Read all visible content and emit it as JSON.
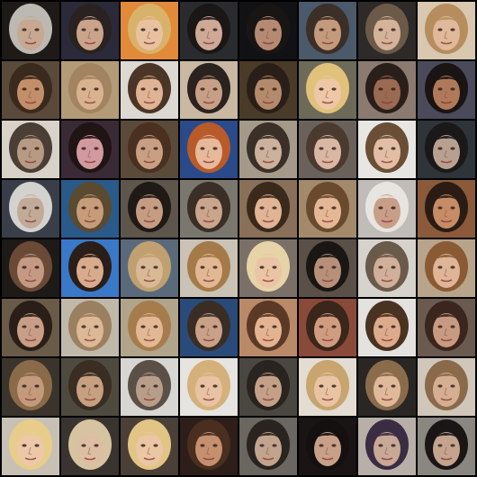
{
  "image_grid": {
    "rows": 8,
    "columns": 8,
    "cell_colors": [
      [
        {
          "bg": "#1d1a17",
          "hair": "#bcb9b2",
          "skin": "#c7a890"
        },
        {
          "bg": "#2a2a3a",
          "hair": "#2a2220",
          "skin": "#c9a48b"
        },
        {
          "bg": "#e08a3a",
          "hair": "#d8b26a",
          "skin": "#e8c2a0"
        },
        {
          "bg": "#2a2b2e",
          "hair": "#1a1716",
          "skin": "#cfa896"
        },
        {
          "bg": "#121214",
          "hair": "#1a1515",
          "skin": "#b68a72"
        },
        {
          "bg": "#4a5a6a",
          "hair": "#3b2f28",
          "skin": "#c49a7c"
        },
        {
          "bg": "#2d2a28",
          "hair": "#6b5a48",
          "skin": "#d4b39a"
        },
        {
          "bg": "#d9c7b0",
          "hair": "#b68e5e",
          "skin": "#e0b89a"
        }
      ],
      [
        {
          "bg": "#5a4a3a",
          "hair": "#3a2a1e",
          "skin": "#c38f6a"
        },
        {
          "bg": "#b49b78",
          "hair": "#a38460",
          "skin": "#d9b390"
        },
        {
          "bg": "#dcd8d2",
          "hair": "#4a3526",
          "skin": "#e0b395"
        },
        {
          "bg": "#c9b8a2",
          "hair": "#2a221e",
          "skin": "#c79f86"
        },
        {
          "bg": "#4a3a28",
          "hair": "#2a1f18",
          "skin": "#b48a6c"
        },
        {
          "bg": "#6e6a5a",
          "hair": "#e0c27a",
          "skin": "#edc7a6"
        },
        {
          "bg": "#8a7a70",
          "hair": "#2a1e1a",
          "skin": "#9a6a52"
        },
        {
          "bg": "#4a4a5a",
          "hair": "#1a1412",
          "skin": "#b07a5a"
        }
      ],
      [
        {
          "bg": "#d8d2c8",
          "hair": "#4a3e36",
          "skin": "#b69a84"
        },
        {
          "bg": "#3a2a36",
          "hair": "#201414",
          "skin": "#d29aa0"
        },
        {
          "bg": "#5a4a3a",
          "hair": "#4a3020",
          "skin": "#c89f82"
        },
        {
          "bg": "#2a4a8a",
          "hair": "#b85a2a",
          "skin": "#e7b89a"
        },
        {
          "bg": "#a59a8a",
          "hair": "#3a3028",
          "skin": "#ccb19c"
        },
        {
          "bg": "#6a625a",
          "hair": "#4a3a30",
          "skin": "#d9b7a2"
        },
        {
          "bg": "#e8e6e2",
          "hair": "#6a4e36",
          "skin": "#e2bfa4"
        },
        {
          "bg": "#2e3438",
          "hair": "#1a1818",
          "skin": "#b8a090"
        }
      ],
      [
        {
          "bg": "#3a3e48",
          "hair": "#d4d2ce",
          "skin": "#c2aa98"
        },
        {
          "bg": "#2a5a8a",
          "hair": "#5a4a30",
          "skin": "#c79c7a"
        },
        {
          "bg": "#5e564a",
          "hair": "#1f1a16",
          "skin": "#c69c82"
        },
        {
          "bg": "#7a786e",
          "hair": "#3a2e26",
          "skin": "#c9a58c"
        },
        {
          "bg": "#8a7058",
          "hair": "#3a2a1c",
          "skin": "#e0b494"
        },
        {
          "bg": "#a28a6a",
          "hair": "#6a4a2c",
          "skin": "#e4b896"
        },
        {
          "bg": "#c0bcb8",
          "hair": "#e8e4e0",
          "skin": "#c99e88"
        },
        {
          "bg": "#8a5a3a",
          "hair": "#2a1c14",
          "skin": "#c58c66"
        }
      ],
      [
        {
          "bg": "#1e1a18",
          "hair": "#6a4a36",
          "skin": "#c49a84"
        },
        {
          "bg": "#3a78c8",
          "hair": "#2a1e18",
          "skin": "#d8ab8c"
        },
        {
          "bg": "#5a6a7a",
          "hair": "#c0a070",
          "skin": "#d9b896"
        },
        {
          "bg": "#cac2b4",
          "hair": "#a47a48",
          "skin": "#e2b894"
        },
        {
          "bg": "#7a7068",
          "hair": "#e6d4a8",
          "skin": "#eac4a4"
        },
        {
          "bg": "#5a5048",
          "hair": "#1a1614",
          "skin": "#b8907a"
        },
        {
          "bg": "#d6d2cc",
          "hair": "#6a5a4a",
          "skin": "#d0b09a"
        },
        {
          "bg": "#b8a48a",
          "hair": "#8a5a34",
          "skin": "#e0b496"
        }
      ],
      [
        {
          "bg": "#6a5a48",
          "hair": "#2a1e18",
          "skin": "#c89e86"
        },
        {
          "bg": "#c0b8a8",
          "hair": "#9a8060",
          "skin": "#dcb896"
        },
        {
          "bg": "#b0a48a",
          "hair": "#a67c4c",
          "skin": "#e2b894"
        },
        {
          "bg": "#2a4a7a",
          "hair": "#3a2e24",
          "skin": "#c9a088"
        },
        {
          "bg": "#ba8a68",
          "hair": "#5a3a26",
          "skin": "#e4b492"
        },
        {
          "bg": "#8a4a3a",
          "hair": "#3a261a",
          "skin": "#cf9c80"
        },
        {
          "bg": "#e4e2de",
          "hair": "#4a3222",
          "skin": "#dcab8c"
        },
        {
          "bg": "#6a5a50",
          "hair": "#3a261e",
          "skin": "#c89a82"
        }
      ],
      [
        {
          "bg": "#3a342c",
          "hair": "#8a6a48",
          "skin": "#c49a7c"
        },
        {
          "bg": "#4e4a40",
          "hair": "#3a2e22",
          "skin": "#c6a080"
        },
        {
          "bg": "#d8d6d2",
          "hair": "#5a5048",
          "skin": "#b89e88"
        },
        {
          "bg": "#e6e4e0",
          "hair": "#d4b07a",
          "skin": "#e8c2a2"
        },
        {
          "bg": "#4a4640",
          "hair": "#2a2420",
          "skin": "#c4a088"
        },
        {
          "bg": "#e2dcd2",
          "hair": "#c8a46e",
          "skin": "#e9c4a4"
        },
        {
          "bg": "#2a2624",
          "hair": "#8a6c4c",
          "skin": "#e0b99a"
        },
        {
          "bg": "#d0c6ba",
          "hair": "#8a6a4a",
          "skin": "#d6ae92"
        }
      ],
      [
        {
          "bg": "#c8c0b4",
          "hair": "#e8cc8a",
          "skin": "#edc8a8"
        },
        {
          "bg": "#3a3430",
          "hair": "#d6c4a0",
          "skin": "#ddbea2"
        },
        {
          "bg": "#4a4038",
          "hair": "#e2c484",
          "skin": "#eac6a4"
        },
        {
          "bg": "#2e1e1a",
          "hair": "#4a2e20",
          "skin": "#c4906e"
        },
        {
          "bg": "#6a6660",
          "hair": "#2a2420",
          "skin": "#c2a48e"
        },
        {
          "bg": "#1a1414",
          "hair": "#141010",
          "skin": "#c8a08a"
        },
        {
          "bg": "#b8b0a8",
          "hair": "#3a2c42",
          "skin": "#c8a896"
        },
        {
          "bg": "#8a8680",
          "hair": "#1a1616",
          "skin": "#c4a48e"
        }
      ]
    ]
  }
}
